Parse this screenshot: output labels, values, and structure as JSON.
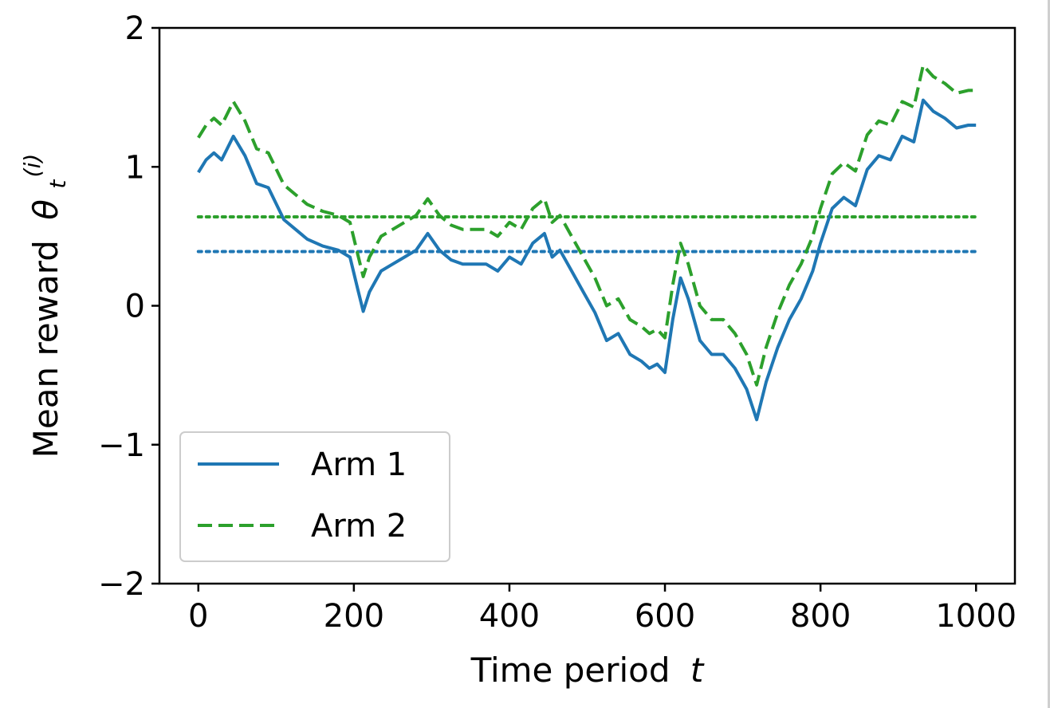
{
  "chart_data": {
    "type": "line",
    "xlabel": "Time period",
    "xlabel_var": "t",
    "ylabel": "Mean reward",
    "ylabel_var": "θ",
    "ylabel_sub": "t",
    "ylabel_sup": "(i)",
    "xlim": [
      -50,
      1050
    ],
    "ylim": [
      -2,
      2
    ],
    "xticks": [
      0,
      200,
      400,
      600,
      800,
      1000
    ],
    "yticks": [
      -2,
      -1,
      0,
      1,
      2
    ],
    "xtick_labels": [
      "0",
      "200",
      "400",
      "600",
      "800",
      "1000"
    ],
    "ytick_labels": [
      "−2",
      "−1",
      "0",
      "1",
      "2"
    ],
    "grid": false,
    "legend": "lower-left",
    "series": [
      {
        "name": "Arm 1",
        "color": "#1f77b4",
        "style": "solid",
        "x": [
          0,
          10,
          20,
          30,
          45,
          60,
          75,
          90,
          110,
          125,
          140,
          160,
          180,
          195,
          205,
          212,
          220,
          235,
          250,
          265,
          280,
          295,
          310,
          325,
          340,
          355,
          370,
          385,
          400,
          415,
          430,
          445,
          455,
          465,
          480,
          495,
          510,
          525,
          540,
          555,
          570,
          580,
          590,
          600,
          610,
          620,
          630,
          645,
          660,
          675,
          690,
          705,
          718,
          730,
          745,
          760,
          775,
          790,
          800,
          815,
          830,
          845,
          860,
          875,
          890,
          905,
          920,
          932,
          945,
          960,
          975,
          990,
          1000
        ],
        "y": [
          0.96,
          1.05,
          1.1,
          1.05,
          1.22,
          1.08,
          0.88,
          0.85,
          0.62,
          0.55,
          0.48,
          0.43,
          0.4,
          0.35,
          0.12,
          -0.04,
          0.1,
          0.25,
          0.3,
          0.35,
          0.4,
          0.52,
          0.4,
          0.33,
          0.3,
          0.3,
          0.3,
          0.25,
          0.35,
          0.3,
          0.45,
          0.52,
          0.35,
          0.4,
          0.25,
          0.1,
          -0.05,
          -0.25,
          -0.2,
          -0.35,
          -0.4,
          -0.45,
          -0.42,
          -0.48,
          -0.1,
          0.2,
          0.05,
          -0.25,
          -0.35,
          -0.35,
          -0.45,
          -0.6,
          -0.82,
          -0.55,
          -0.3,
          -0.1,
          0.05,
          0.25,
          0.45,
          0.7,
          0.78,
          0.72,
          0.98,
          1.08,
          1.05,
          1.22,
          1.18,
          1.48,
          1.4,
          1.35,
          1.28,
          1.3,
          1.3
        ]
      },
      {
        "name": "Arm 2",
        "color": "#2ca02c",
        "style": "dashed",
        "x": [
          0,
          10,
          20,
          30,
          45,
          60,
          75,
          90,
          110,
          125,
          140,
          160,
          180,
          195,
          205,
          212,
          220,
          235,
          250,
          265,
          280,
          295,
          310,
          325,
          340,
          355,
          370,
          385,
          400,
          415,
          430,
          445,
          455,
          465,
          480,
          495,
          510,
          525,
          540,
          555,
          570,
          580,
          590,
          600,
          610,
          620,
          630,
          645,
          660,
          675,
          690,
          705,
          718,
          730,
          745,
          760,
          775,
          790,
          800,
          815,
          830,
          845,
          860,
          875,
          890,
          905,
          920,
          932,
          945,
          960,
          975,
          990,
          1000
        ],
        "y": [
          1.21,
          1.3,
          1.35,
          1.3,
          1.47,
          1.33,
          1.13,
          1.1,
          0.87,
          0.8,
          0.73,
          0.68,
          0.65,
          0.6,
          0.37,
          0.21,
          0.35,
          0.5,
          0.55,
          0.6,
          0.65,
          0.77,
          0.65,
          0.58,
          0.55,
          0.55,
          0.55,
          0.5,
          0.6,
          0.55,
          0.7,
          0.77,
          0.6,
          0.65,
          0.5,
          0.35,
          0.2,
          0.0,
          0.05,
          -0.1,
          -0.15,
          -0.2,
          -0.17,
          -0.23,
          0.15,
          0.45,
          0.3,
          0.0,
          -0.1,
          -0.1,
          -0.2,
          -0.35,
          -0.57,
          -0.3,
          -0.05,
          0.15,
          0.3,
          0.5,
          0.7,
          0.95,
          1.03,
          0.97,
          1.23,
          1.33,
          1.3,
          1.47,
          1.43,
          1.73,
          1.65,
          1.6,
          1.53,
          1.55,
          1.55
        ]
      }
    ],
    "reference_lines": [
      {
        "series": "Arm 1",
        "y": 0.39,
        "color": "#1f77b4",
        "style": "dotted",
        "x_range": [
          0,
          1000
        ]
      },
      {
        "series": "Arm 2",
        "y": 0.64,
        "color": "#2ca02c",
        "style": "dotted",
        "x_range": [
          0,
          1000
        ]
      }
    ]
  }
}
